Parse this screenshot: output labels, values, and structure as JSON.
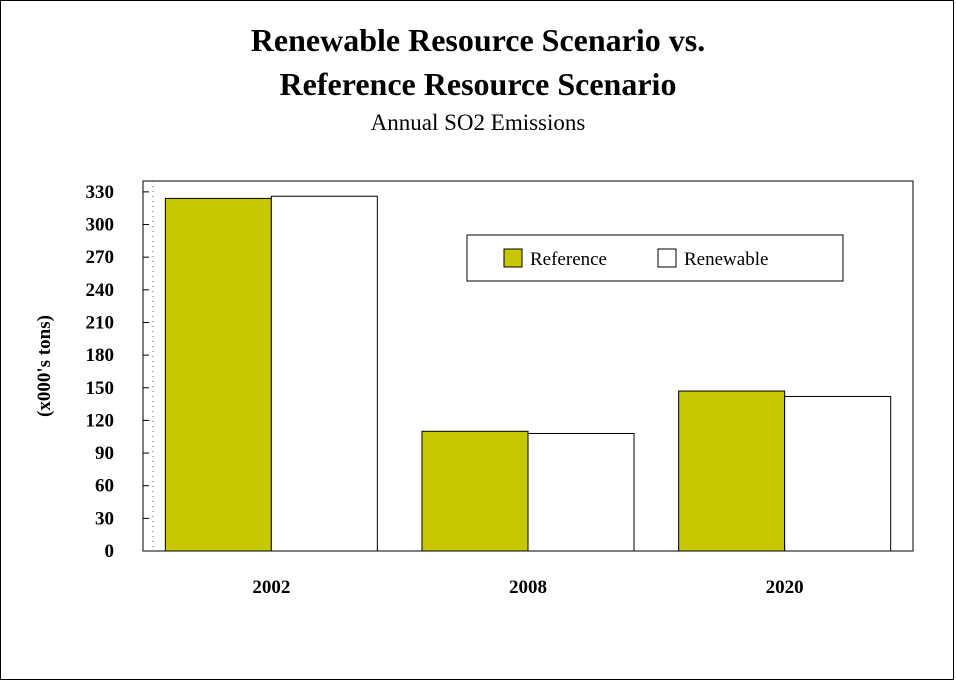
{
  "chart_data": {
    "type": "bar",
    "title": "Renewable Resource Scenario vs.",
    "title_line2": "Reference Resource Scenario",
    "subtitle": "Annual SO2 Emissions",
    "xlabel": "",
    "ylabel": "(x000's tons)",
    "categories": [
      "2002",
      "2008",
      "2020"
    ],
    "series": [
      {
        "name": "Reference",
        "values": [
          324,
          110,
          147
        ],
        "color": "#c8c800"
      },
      {
        "name": "Renewable",
        "values": [
          326,
          108,
          142
        ],
        "color": "#ffffff"
      }
    ],
    "ylim": [
      0,
      340
    ],
    "yticks": [
      0,
      30,
      60,
      90,
      120,
      150,
      180,
      210,
      240,
      270,
      300,
      330
    ],
    "grid": false,
    "legend": "top-right"
  }
}
